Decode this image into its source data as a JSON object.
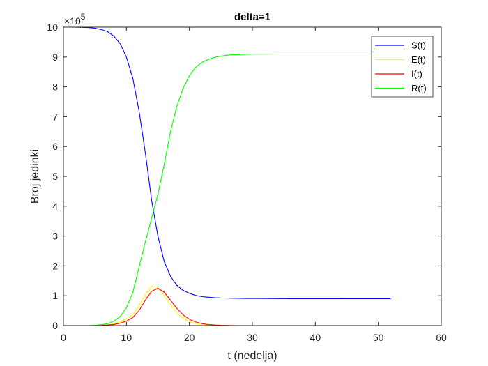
{
  "chart_data": {
    "type": "line",
    "title": "delta=1",
    "xlabel": "t (nedelja)",
    "ylabel": "Broj jedinki",
    "xlim": [
      0,
      60
    ],
    "ylim": [
      0,
      1000000
    ],
    "x_ticks": [
      "0",
      "10",
      "20",
      "30",
      "40",
      "50",
      "60"
    ],
    "y_ticks": [
      "0",
      "1",
      "2",
      "3",
      "4",
      "5",
      "6",
      "7",
      "8",
      "9",
      "10"
    ],
    "y_exponent": {
      "base": "×10",
      "power": "5"
    },
    "grid": false,
    "legend_position": "top-right",
    "x": [
      0,
      1,
      2,
      3,
      4,
      5,
      6,
      7,
      8,
      9,
      10,
      11,
      12,
      13,
      14,
      15,
      16,
      17,
      18,
      19,
      20,
      21,
      22,
      23,
      24,
      25,
      26,
      27,
      28,
      29,
      30,
      31,
      32,
      33,
      34,
      35,
      36,
      37,
      38,
      39,
      40,
      41,
      42,
      43,
      44,
      45,
      46,
      47,
      48,
      49,
      50,
      51,
      52
    ],
    "series": [
      {
        "name": "S(t)",
        "color": "#0000ff",
        "values": [
          1000000,
          999900,
          999700,
          999300,
          998500,
          996500,
          992000,
          985000,
          970000,
          945000,
          900000,
          830000,
          720000,
          580000,
          420000,
          300000,
          215000,
          165000,
          135000,
          118000,
          108000,
          101000,
          97000,
          95000,
          93500,
          92500,
          92000,
          91500,
          91200,
          91000,
          90900,
          90800,
          90700,
          90600,
          90500,
          90400,
          90300,
          90300,
          90200,
          90200,
          90200,
          90100,
          90100,
          90100,
          90100,
          90000,
          90000,
          90000,
          90000,
          90000,
          90000,
          90000,
          90000
        ]
      },
      {
        "name": "E(t)",
        "color": "#ffff00",
        "values": [
          0,
          0,
          0,
          0,
          0,
          500,
          1500,
          3000,
          6000,
          12000,
          22000,
          38000,
          68000,
          105000,
          132000,
          128000,
          100000,
          68000,
          42000,
          24000,
          13000,
          7000,
          3500,
          1800,
          900,
          400,
          200,
          100,
          50,
          0,
          0,
          0,
          0,
          0,
          0,
          0,
          0,
          0,
          0,
          0,
          0,
          0,
          0,
          0,
          0,
          0,
          0,
          0,
          0,
          0,
          0,
          0,
          0
        ]
      },
      {
        "name": "I(t)",
        "color": "#ff0000",
        "values": [
          0,
          0,
          0,
          0,
          0,
          200,
          700,
          1800,
          3800,
          8000,
          15000,
          27000,
          50000,
          85000,
          115000,
          125000,
          112000,
          85000,
          58000,
          36000,
          21000,
          12000,
          6500,
          3500,
          1800,
          900,
          450,
          200,
          100,
          50,
          0,
          0,
          0,
          0,
          0,
          0,
          0,
          0,
          0,
          0,
          0,
          0,
          0,
          0,
          0,
          0,
          0,
          0,
          0,
          0,
          0,
          0,
          0
        ]
      },
      {
        "name": "R(t)",
        "color": "#00ff00",
        "values": [
          0,
          0,
          0,
          0,
          0,
          1000,
          3000,
          6000,
          15000,
          30000,
          60000,
          110000,
          195000,
          280000,
          360000,
          440000,
          540000,
          650000,
          735000,
          795000,
          838000,
          866000,
          882000,
          892000,
          899000,
          903000,
          906000,
          907500,
          908500,
          909000,
          909500,
          909700,
          909800,
          909900,
          910000,
          910000,
          910000,
          910000,
          910000,
          910000,
          910000,
          910000,
          910000,
          910000,
          910000,
          910000,
          910000,
          910000,
          910000,
          910000,
          910000,
          910000,
          910000
        ]
      }
    ]
  }
}
